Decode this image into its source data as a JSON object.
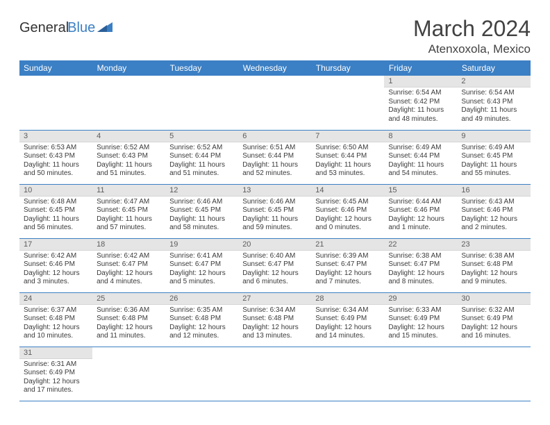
{
  "logo": {
    "word1": "General",
    "word2": "Blue"
  },
  "title": "March 2024",
  "location": "Atenxoxola, Mexico",
  "colors": {
    "header_bg": "#3b7fc4",
    "header_text": "#ffffff",
    "daynum_bg": "#e5e5e5",
    "daynum_text": "#5c5c5c",
    "cell_border": "#3b7fc4",
    "body_text": "#3a3a3a",
    "logo_accent": "#3b7fc4"
  },
  "weekdays": [
    "Sunday",
    "Monday",
    "Tuesday",
    "Wednesday",
    "Thursday",
    "Friday",
    "Saturday"
  ],
  "weeks": [
    [
      null,
      null,
      null,
      null,
      null,
      {
        "n": "1",
        "sr": "Sunrise: 6:54 AM",
        "ss": "Sunset: 6:42 PM",
        "dl": "Daylight: 11 hours and 48 minutes."
      },
      {
        "n": "2",
        "sr": "Sunrise: 6:54 AM",
        "ss": "Sunset: 6:43 PM",
        "dl": "Daylight: 11 hours and 49 minutes."
      }
    ],
    [
      {
        "n": "3",
        "sr": "Sunrise: 6:53 AM",
        "ss": "Sunset: 6:43 PM",
        "dl": "Daylight: 11 hours and 50 minutes."
      },
      {
        "n": "4",
        "sr": "Sunrise: 6:52 AM",
        "ss": "Sunset: 6:43 PM",
        "dl": "Daylight: 11 hours and 51 minutes."
      },
      {
        "n": "5",
        "sr": "Sunrise: 6:52 AM",
        "ss": "Sunset: 6:44 PM",
        "dl": "Daylight: 11 hours and 51 minutes."
      },
      {
        "n": "6",
        "sr": "Sunrise: 6:51 AM",
        "ss": "Sunset: 6:44 PM",
        "dl": "Daylight: 11 hours and 52 minutes."
      },
      {
        "n": "7",
        "sr": "Sunrise: 6:50 AM",
        "ss": "Sunset: 6:44 PM",
        "dl": "Daylight: 11 hours and 53 minutes."
      },
      {
        "n": "8",
        "sr": "Sunrise: 6:49 AM",
        "ss": "Sunset: 6:44 PM",
        "dl": "Daylight: 11 hours and 54 minutes."
      },
      {
        "n": "9",
        "sr": "Sunrise: 6:49 AM",
        "ss": "Sunset: 6:45 PM",
        "dl": "Daylight: 11 hours and 55 minutes."
      }
    ],
    [
      {
        "n": "10",
        "sr": "Sunrise: 6:48 AM",
        "ss": "Sunset: 6:45 PM",
        "dl": "Daylight: 11 hours and 56 minutes."
      },
      {
        "n": "11",
        "sr": "Sunrise: 6:47 AM",
        "ss": "Sunset: 6:45 PM",
        "dl": "Daylight: 11 hours and 57 minutes."
      },
      {
        "n": "12",
        "sr": "Sunrise: 6:46 AM",
        "ss": "Sunset: 6:45 PM",
        "dl": "Daylight: 11 hours and 58 minutes."
      },
      {
        "n": "13",
        "sr": "Sunrise: 6:46 AM",
        "ss": "Sunset: 6:45 PM",
        "dl": "Daylight: 11 hours and 59 minutes."
      },
      {
        "n": "14",
        "sr": "Sunrise: 6:45 AM",
        "ss": "Sunset: 6:46 PM",
        "dl": "Daylight: 12 hours and 0 minutes."
      },
      {
        "n": "15",
        "sr": "Sunrise: 6:44 AM",
        "ss": "Sunset: 6:46 PM",
        "dl": "Daylight: 12 hours and 1 minute."
      },
      {
        "n": "16",
        "sr": "Sunrise: 6:43 AM",
        "ss": "Sunset: 6:46 PM",
        "dl": "Daylight: 12 hours and 2 minutes."
      }
    ],
    [
      {
        "n": "17",
        "sr": "Sunrise: 6:42 AM",
        "ss": "Sunset: 6:46 PM",
        "dl": "Daylight: 12 hours and 3 minutes."
      },
      {
        "n": "18",
        "sr": "Sunrise: 6:42 AM",
        "ss": "Sunset: 6:47 PM",
        "dl": "Daylight: 12 hours and 4 minutes."
      },
      {
        "n": "19",
        "sr": "Sunrise: 6:41 AM",
        "ss": "Sunset: 6:47 PM",
        "dl": "Daylight: 12 hours and 5 minutes."
      },
      {
        "n": "20",
        "sr": "Sunrise: 6:40 AM",
        "ss": "Sunset: 6:47 PM",
        "dl": "Daylight: 12 hours and 6 minutes."
      },
      {
        "n": "21",
        "sr": "Sunrise: 6:39 AM",
        "ss": "Sunset: 6:47 PM",
        "dl": "Daylight: 12 hours and 7 minutes."
      },
      {
        "n": "22",
        "sr": "Sunrise: 6:38 AM",
        "ss": "Sunset: 6:47 PM",
        "dl": "Daylight: 12 hours and 8 minutes."
      },
      {
        "n": "23",
        "sr": "Sunrise: 6:38 AM",
        "ss": "Sunset: 6:48 PM",
        "dl": "Daylight: 12 hours and 9 minutes."
      }
    ],
    [
      {
        "n": "24",
        "sr": "Sunrise: 6:37 AM",
        "ss": "Sunset: 6:48 PM",
        "dl": "Daylight: 12 hours and 10 minutes."
      },
      {
        "n": "25",
        "sr": "Sunrise: 6:36 AM",
        "ss": "Sunset: 6:48 PM",
        "dl": "Daylight: 12 hours and 11 minutes."
      },
      {
        "n": "26",
        "sr": "Sunrise: 6:35 AM",
        "ss": "Sunset: 6:48 PM",
        "dl": "Daylight: 12 hours and 12 minutes."
      },
      {
        "n": "27",
        "sr": "Sunrise: 6:34 AM",
        "ss": "Sunset: 6:48 PM",
        "dl": "Daylight: 12 hours and 13 minutes."
      },
      {
        "n": "28",
        "sr": "Sunrise: 6:34 AM",
        "ss": "Sunset: 6:49 PM",
        "dl": "Daylight: 12 hours and 14 minutes."
      },
      {
        "n": "29",
        "sr": "Sunrise: 6:33 AM",
        "ss": "Sunset: 6:49 PM",
        "dl": "Daylight: 12 hours and 15 minutes."
      },
      {
        "n": "30",
        "sr": "Sunrise: 6:32 AM",
        "ss": "Sunset: 6:49 PM",
        "dl": "Daylight: 12 hours and 16 minutes."
      }
    ],
    [
      {
        "n": "31",
        "sr": "Sunrise: 6:31 AM",
        "ss": "Sunset: 6:49 PM",
        "dl": "Daylight: 12 hours and 17 minutes."
      },
      null,
      null,
      null,
      null,
      null,
      null
    ]
  ]
}
